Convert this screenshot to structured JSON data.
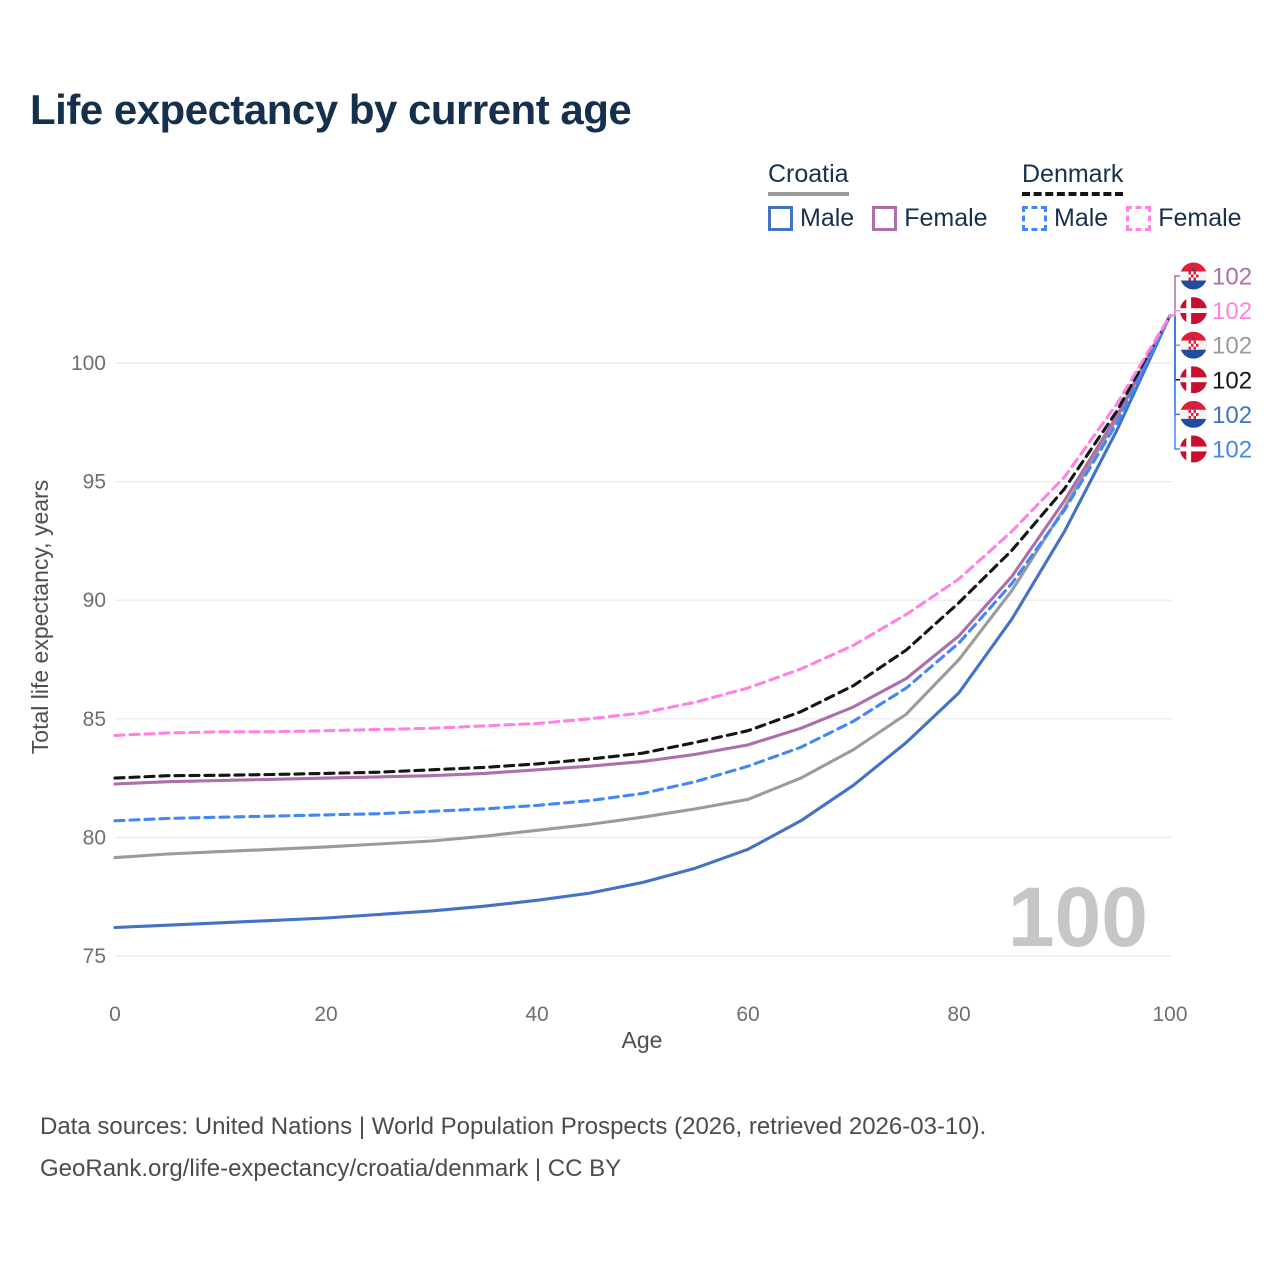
{
  "title": "Life expectancy by current age",
  "watermark": "100",
  "legend": {
    "groups": [
      {
        "label": "Croatia",
        "line_style": "solid",
        "items": [
          {
            "label": "Male",
            "series": "croatia-male"
          },
          {
            "label": "Female",
            "series": "croatia-female"
          }
        ]
      },
      {
        "label": "Denmark",
        "line_style": "dashed",
        "items": [
          {
            "label": "Male",
            "series": "denmark-male"
          },
          {
            "label": "Female",
            "series": "denmark-female"
          }
        ]
      }
    ]
  },
  "footer": {
    "line1": "Data sources: United Nations | World Population Prospects (2026, retrieved 2026-03-10).",
    "line2": "GeoRank.org/life-expectancy/croatia/denmark | CC BY"
  },
  "chart_data": {
    "type": "line",
    "title": "Life expectancy by current age",
    "xlabel": "Age",
    "ylabel": "Total life expectancy, years",
    "xlim": [
      0,
      100
    ],
    "ylim": [
      75,
      102.5
    ],
    "xticks": [
      0,
      20,
      40,
      60,
      80,
      100
    ],
    "yticks": [
      75,
      80,
      85,
      90,
      95,
      100
    ],
    "grid": "horizontal",
    "legend_position": "top-right",
    "x": [
      0,
      5,
      10,
      15,
      20,
      25,
      30,
      35,
      40,
      45,
      50,
      55,
      60,
      65,
      70,
      75,
      80,
      85,
      90,
      95,
      100
    ],
    "series": [
      {
        "id": "croatia-both",
        "name": "Croatia",
        "color": "#9b9b9b",
        "dash": "solid",
        "flag": "croatia",
        "end_row": 2,
        "end_value": 102,
        "values": [
          79.15,
          79.3,
          79.4,
          79.5,
          79.6,
          79.72,
          79.85,
          80.05,
          80.3,
          80.55,
          80.85,
          81.2,
          81.6,
          82.5,
          83.7,
          85.2,
          87.5,
          90.4,
          93.9,
          97.7,
          102
        ]
      },
      {
        "id": "croatia-male",
        "name": "Croatia Male",
        "color": "#4472c4",
        "dash": "solid",
        "flag": "croatia",
        "end_row": 4,
        "end_value": 102,
        "values": [
          76.2,
          76.3,
          76.4,
          76.5,
          76.6,
          76.75,
          76.9,
          77.1,
          77.35,
          77.65,
          78.1,
          78.7,
          79.5,
          80.7,
          82.2,
          84.0,
          86.1,
          89.2,
          92.9,
          97.2,
          102
        ]
      },
      {
        "id": "croatia-female",
        "name": "Croatia Female",
        "color": "#ac6fab",
        "dash": "solid",
        "flag": "croatia",
        "end_row": 0,
        "end_value": 102,
        "values": [
          82.25,
          82.35,
          82.4,
          82.45,
          82.5,
          82.55,
          82.6,
          82.7,
          82.85,
          83.0,
          83.2,
          83.5,
          83.9,
          84.6,
          85.5,
          86.7,
          88.5,
          91.0,
          94.2,
          97.8,
          102
        ]
      },
      {
        "id": "denmark-both",
        "name": "Denmark",
        "color": "#151515",
        "dash": "dashed",
        "flag": "denmark",
        "end_row": 3,
        "end_value": 102,
        "values": [
          82.5,
          82.6,
          82.62,
          82.65,
          82.7,
          82.75,
          82.85,
          82.95,
          83.1,
          83.3,
          83.55,
          84.0,
          84.5,
          85.3,
          86.4,
          87.9,
          89.9,
          92.1,
          94.7,
          98.0,
          102
        ]
      },
      {
        "id": "denmark-male",
        "name": "Denmark Male",
        "color": "#4288f5",
        "dash": "dashed",
        "flag": "denmark",
        "end_row": 5,
        "end_value": 102,
        "values": [
          80.7,
          80.8,
          80.85,
          80.9,
          80.95,
          81.0,
          81.1,
          81.2,
          81.35,
          81.55,
          81.85,
          82.35,
          83.0,
          83.8,
          84.9,
          86.3,
          88.2,
          90.7,
          93.8,
          97.5,
          102
        ]
      },
      {
        "id": "denmark-female",
        "name": "Denmark Female",
        "color": "#ff82e3",
        "dash": "dashed",
        "flag": "denmark",
        "end_row": 1,
        "end_value": 102,
        "values": [
          84.3,
          84.4,
          84.45,
          84.45,
          84.5,
          84.55,
          84.6,
          84.7,
          84.8,
          85.0,
          85.25,
          85.7,
          86.3,
          87.1,
          88.1,
          89.4,
          90.9,
          92.9,
          95.2,
          98.3,
          102
        ]
      }
    ]
  }
}
